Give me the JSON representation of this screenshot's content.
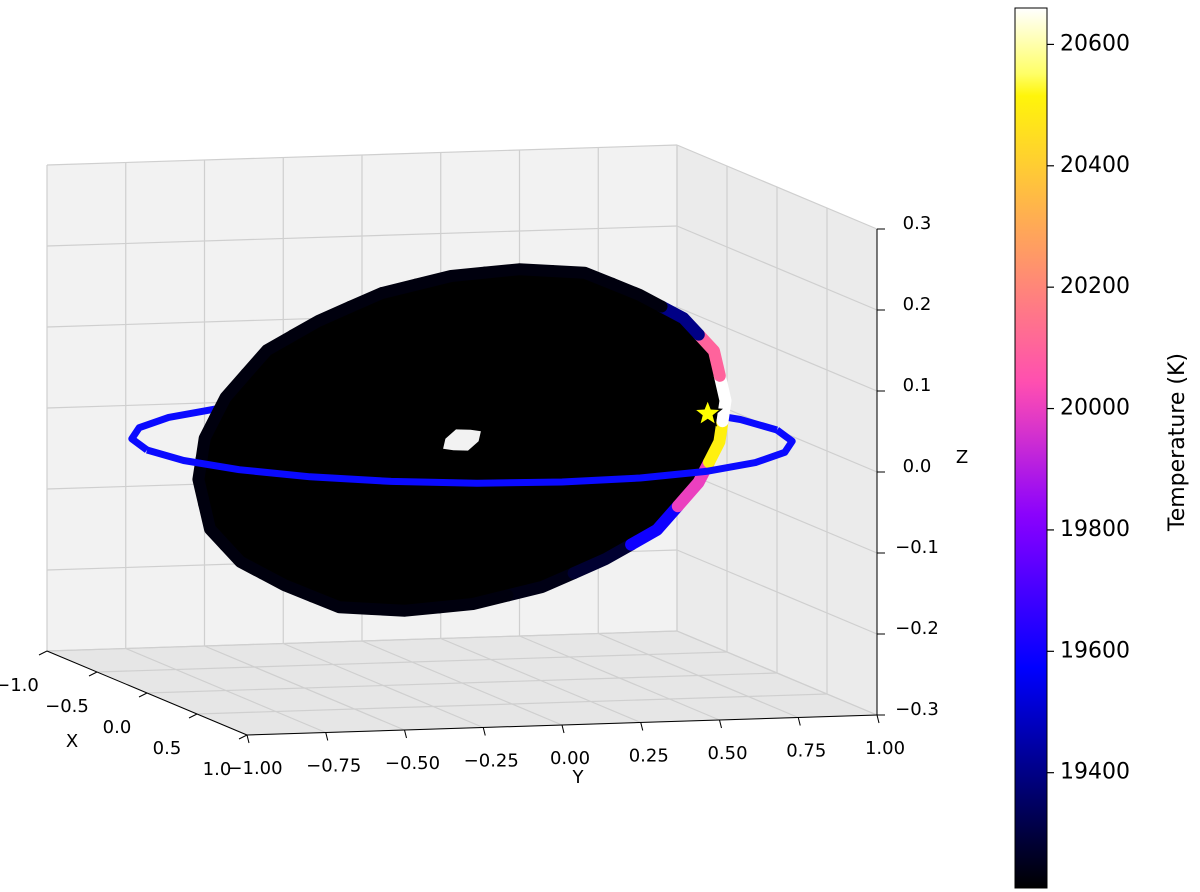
{
  "chart_data": {
    "type": "scatter3d",
    "xlabel": "X",
    "ylabel": "Y",
    "zlabel": "Z",
    "xlim": [
      -1,
      1
    ],
    "ylim": [
      -1,
      1
    ],
    "zlim": [
      -0.3,
      0.3
    ],
    "xticks": [
      {
        "value": -1,
        "label": "−1.0"
      },
      {
        "value": -0.5,
        "label": "−0.5"
      },
      {
        "value": 0,
        "label": "0.0"
      },
      0.5,
      {
        "value": 1,
        "label": "1.0"
      }
    ],
    "yticks": [
      {
        "value": -1,
        "label": "−1.00"
      },
      {
        "value": -0.75,
        "label": "−0.75"
      },
      {
        "value": -0.5,
        "label": "−0.50"
      },
      {
        "value": -0.25,
        "label": "−0.25"
      },
      {
        "value": 0,
        "label": "0.00"
      },
      0.25,
      {
        "value": 0.5,
        "label": "0.50"
      },
      0.75,
      {
        "value": 1,
        "label": "1.00"
      }
    ],
    "zticks": [
      {
        "value": -0.3,
        "label": "−0.3"
      },
      {
        "value": -0.2,
        "label": "−0.2"
      },
      {
        "value": -0.1,
        "label": "−0.1"
      },
      {
        "value": 0,
        "label": "0.0"
      },
      0.1,
      0.2,
      0.3
    ],
    "grid": true,
    "orbit": {
      "color": "#0a0aff",
      "x": [
        1,
        0.966,
        0.866,
        0.707,
        0.5,
        0.259,
        0,
        -0.259,
        -0.5,
        -0.707,
        -0.866,
        -0.966,
        -1,
        -0.966,
        -0.866,
        -0.707,
        -0.5,
        -0.259,
        0,
        0.259,
        0.5,
        0.707,
        0.866,
        0.966
      ],
      "y": [
        0,
        0.259,
        0.5,
        0.707,
        0.866,
        0.966,
        1,
        0.966,
        0.866,
        0.707,
        0.5,
        0.259,
        0,
        -0.259,
        -0.5,
        -0.707,
        -0.866,
        -0.966,
        -1,
        -0.966,
        -0.866,
        -0.707,
        -0.5,
        -0.259
      ],
      "z": [
        0,
        0,
        0,
        0,
        0,
        0,
        0,
        0,
        0,
        0,
        0,
        0,
        0,
        0,
        0,
        0,
        0,
        0,
        0,
        0,
        0,
        0,
        0,
        0
      ]
    },
    "disk": {
      "color": "#000000",
      "edge": {
        "x": [
          0.8,
          0.77,
          0.69,
          0.57,
          0.4,
          0.21,
          0,
          -0.21,
          -0.4,
          -0.57,
          -0.69,
          -0.77,
          -0.8,
          -0.77,
          -0.69,
          -0.57,
          -0.4,
          -0.21,
          0,
          0.21,
          0.4,
          0.57,
          0.69,
          0.77
        ],
        "y": [
          0,
          0.21,
          0.4,
          0.57,
          0.69,
          0.77,
          0.8,
          0.77,
          0.69,
          0.57,
          0.4,
          0.21,
          0,
          -0.21,
          -0.4,
          -0.57,
          -0.69,
          -0.77,
          -0.8,
          -0.77,
          -0.69,
          -0.57,
          -0.4,
          -0.21
        ],
        "z": [
          -0.14,
          -0.11,
          -0.08,
          -0.03,
          0.01,
          0.05,
          0.1,
          0.13,
          0.15,
          0.17,
          0.17,
          0.16,
          0.14,
          0.11,
          0.08,
          0.03,
          -0.01,
          -0.05,
          -0.1,
          -0.13,
          -0.15,
          -0.17,
          -0.17,
          -0.16
        ],
        "values": [
          19240,
          19280,
          19600,
          20000,
          20500,
          20660,
          20100,
          19400,
          19230,
          19230,
          19230,
          19230,
          19230,
          19230,
          19230,
          19230,
          19230,
          19230,
          19230,
          19230,
          19230,
          19230,
          19230,
          19230
        ]
      },
      "hole": {
        "x": [
          0.06,
          0.04,
          0,
          -0.04,
          -0.06,
          -0.04,
          0,
          0.04
        ],
        "y": [
          0,
          0.04,
          0.06,
          0.04,
          0,
          -0.04,
          -0.06,
          -0.04
        ],
        "z": [
          -0.01,
          0,
          0.01,
          0.01,
          0.01,
          0,
          -0.01,
          -0.01
        ]
      }
    },
    "star": {
      "x": -0.41,
      "y": 0.91,
      "z": 0,
      "color": "#ffff00",
      "edgecolor": "#000000"
    },
    "colorbar": {
      "label": "Temperature (K)",
      "colormap": "gnuplot2",
      "clim": [
        19210,
        20660
      ],
      "ticks": [
        19400,
        19600,
        19800,
        20000,
        20200,
        20400,
        20600
      ]
    }
  }
}
